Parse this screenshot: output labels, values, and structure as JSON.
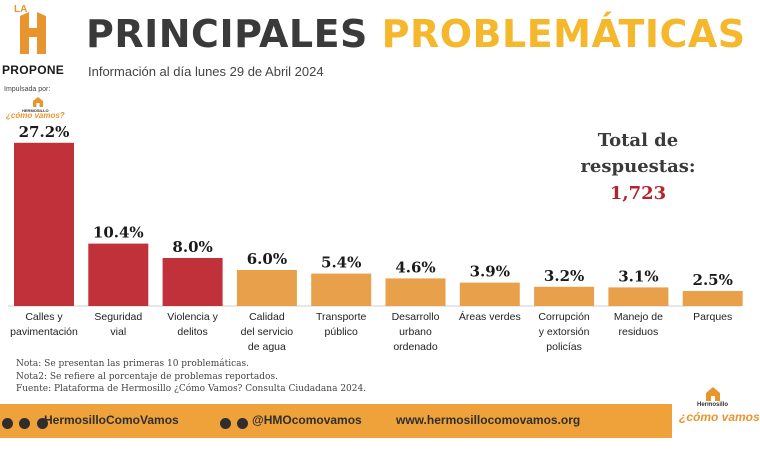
{
  "brand": {
    "la": "LA",
    "propone": "PROPONE",
    "impulsada_por": "Impulsada por:",
    "sponsor_small": "HERMOSILLO",
    "sponsor_name": "¿cómo vamos?"
  },
  "header": {
    "title_part1": "PRINCIPALES",
    "title_part2": "PROBLEMÁTICAS",
    "subtitle": "Información al día lunes 29 de Abril 2024"
  },
  "total": {
    "label_line1": "Total de",
    "label_line2": "respuestas:",
    "value": "1,723"
  },
  "chart_data": {
    "type": "bar",
    "title": "",
    "xlabel": "",
    "ylabel": "",
    "ylim": [
      0,
      30
    ],
    "grid": false,
    "categories": [
      [
        "Calles y",
        "pavimentación"
      ],
      [
        "Seguridad",
        "vial"
      ],
      [
        "Violencia y",
        "delitos"
      ],
      [
        "Calidad",
        "del servicio",
        "de agua"
      ],
      [
        "Transporte",
        "público"
      ],
      [
        "Desarrollo",
        "urbano",
        "ordenado"
      ],
      [
        "Áreas verdes"
      ],
      [
        "Corrupción",
        "y extorsión",
        "policías"
      ],
      [
        "Manejo de",
        "residuos"
      ],
      [
        "Parques"
      ]
    ],
    "values": [
      27.2,
      10.4,
      8.0,
      6.0,
      5.4,
      4.6,
      3.9,
      3.2,
      3.1,
      2.5
    ],
    "value_labels": [
      "27.2%",
      "10.4%",
      "8.0%",
      "6.0%",
      "5.4%",
      "4.6%",
      "3.9%",
      "3.2%",
      "3.1%",
      "2.5%"
    ],
    "colors": [
      "#c0313a",
      "#c0313a",
      "#c0313a",
      "#e8a14a",
      "#e8a14a",
      "#e8a14a",
      "#e8a14a",
      "#e8a14a",
      "#e8a14a",
      "#e8a14a"
    ]
  },
  "notes": [
    "Nota: Se presentan las primeras 10 problemáticas.",
    "Nota2: Se refiere al porcentaje de problemas reportados.",
    "Fuente: Plataforma de Hermosillo ¿Cómo Vamos? Consulta Ciudadana 2024."
  ],
  "footer": {
    "social1": "HermosilloComoVamos",
    "social2": "@HMOcomovamos",
    "website": "www.hermosillocomovamos.org",
    "logo_small": "Hermosillo",
    "logo_name": "¿cómo vamos"
  },
  "colors": {
    "title_dark": "#3a3a3a",
    "title_accent": "#f5b72b",
    "bar_red": "#c0313a",
    "bar_orange": "#e8a14a",
    "footer": "#f0a23a",
    "total_value": "#b3242c"
  }
}
